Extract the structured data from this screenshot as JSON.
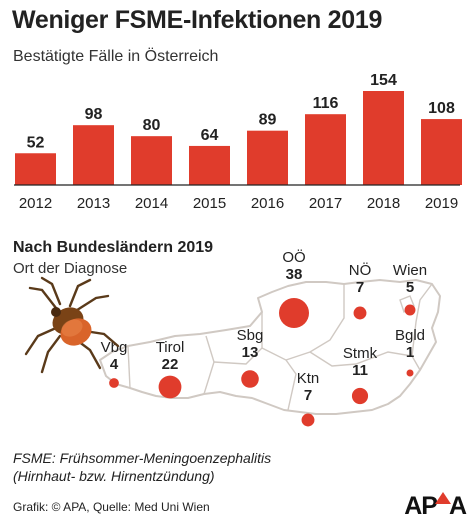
{
  "header": {
    "title": "Weniger FSME-Infektionen 2019",
    "subtitle": "Bestätigte Fälle in Österreich"
  },
  "chart_data": [
    {
      "type": "bar",
      "title": "Weniger FSME-Infektionen 2019",
      "subtitle": "Bestätigte Fälle in Österreich",
      "categories": [
        "2012",
        "2013",
        "2014",
        "2015",
        "2016",
        "2017",
        "2018",
        "2019"
      ],
      "values": [
        52,
        98,
        80,
        64,
        89,
        116,
        154,
        108
      ],
      "xlabel": "",
      "ylabel": "",
      "ylim": [
        0,
        154
      ],
      "grid": false,
      "bar_color": "#e03c2c"
    },
    {
      "type": "bubble-map",
      "title": "Nach Bundesländern 2019",
      "subtitle": "Ort der Diagnose",
      "series": [
        {
          "name": "OÖ",
          "value": 38
        },
        {
          "name": "NÖ",
          "value": 7
        },
        {
          "name": "Wien",
          "value": 5
        },
        {
          "name": "Vbg",
          "value": 4
        },
        {
          "name": "Tirol",
          "value": 22
        },
        {
          "name": "Sbg",
          "value": 13
        },
        {
          "name": "Stmk",
          "value": 11
        },
        {
          "name": "Bgld",
          "value": 1
        },
        {
          "name": "Ktn",
          "value": 7
        }
      ],
      "bubble_color": "#e03c2c"
    }
  ],
  "section": {
    "title": "Nach Bundesländern 2019",
    "subtitle": "Ort der Diagnose"
  },
  "footnote": {
    "line1": "FSME: Frühsommer-Meningoenzephalitis",
    "line2": "(Hirnhaut- bzw. Hirnentzündung)"
  },
  "credit": "Grafik: © APA, Quelle: Med Uni Wien",
  "logo": {
    "left": "AP",
    "right": "A"
  },
  "colors": {
    "accent": "#e03c2c",
    "border": "#d0c9c3"
  }
}
